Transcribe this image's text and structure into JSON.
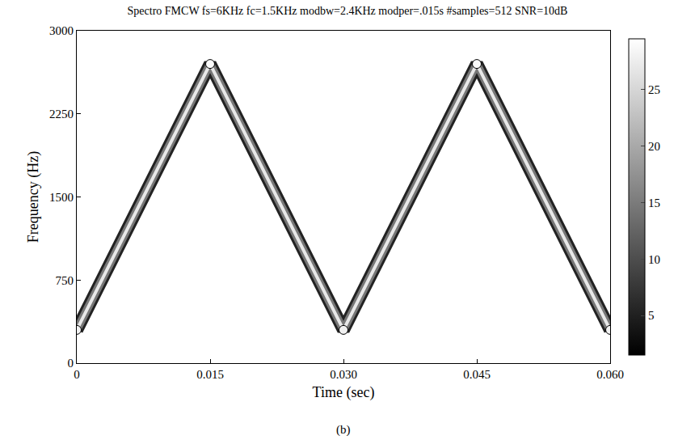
{
  "chart_data": {
    "type": "line",
    "title": "Spectro FMCW fs=6KHz fc=1.5KHz modbw=2.4KHz modper=.015s #samples=512 SNR=10dB",
    "x_label": "Time (sec)",
    "y_label": "Frequency (Hz)",
    "caption": "(b)",
    "x": [
      0,
      0.015,
      0.03,
      0.045,
      0.06
    ],
    "values": [
      300,
      2700,
      300,
      2700,
      300
    ],
    "intensity": [
      28,
      29,
      28,
      29,
      28
    ],
    "xlim": [
      0,
      0.06
    ],
    "xticks": [
      0,
      0.015,
      {
        "value": 0.03,
        "label": "0.030"
      },
      0.045,
      {
        "value": 0.06,
        "label": "0.060"
      }
    ],
    "ylim": [
      0,
      3000
    ],
    "yticks": [
      0,
      750,
      1500,
      2250,
      3000
    ],
    "colorbar": {
      "range": [
        1.5,
        29.5
      ],
      "ticks": [
        5,
        10,
        15,
        20,
        25
      ]
    },
    "grid": false
  }
}
